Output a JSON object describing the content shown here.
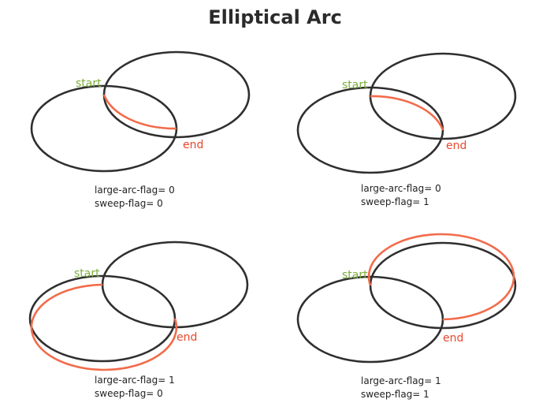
{
  "title": "Elliptical Arc",
  "colors": {
    "ellipse": "#2f2f2f",
    "arc": "#f26b4a",
    "start": "#7cae3b",
    "end": "#e8482e"
  },
  "panels": [
    {
      "start_label": "start",
      "end_label": "end",
      "large_arc_flag": "large-arc-flag= 0",
      "sweep_flag": "sweep-flag= 0"
    },
    {
      "start_label": "start",
      "end_label": "end",
      "large_arc_flag": "large-arc-flag= 0",
      "sweep_flag": "sweep-flag= 1"
    },
    {
      "start_label": "start",
      "end_label": "end",
      "large_arc_flag": "large-arc-flag= 1",
      "sweep_flag": "sweep-flag= 0"
    },
    {
      "start_label": "start",
      "end_label": "end",
      "large_arc_flag": "large-arc-flag= 1",
      "sweep_flag": "sweep-flag= 1"
    }
  ]
}
